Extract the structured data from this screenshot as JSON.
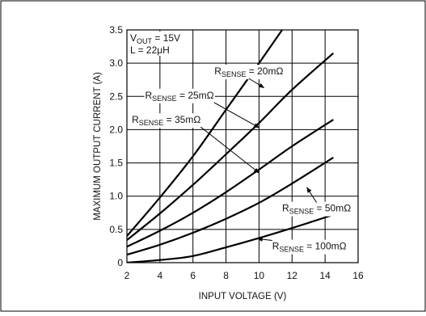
{
  "chart_data": {
    "type": "line",
    "title": "",
    "xlabel": "INPUT VOLTAGE (V)",
    "ylabel": "MAXIMUM OUTPUT CURRENT (A)",
    "xlim": [
      2,
      16
    ],
    "ylim": [
      0,
      3.5
    ],
    "x_ticks": [
      "2",
      "4",
      "6",
      "8",
      "10",
      "12",
      "14",
      "16"
    ],
    "y_ticks": [
      "0",
      "0.5",
      "1.0",
      "1.5",
      "2.0",
      "2.5",
      "3.0",
      "3.5"
    ],
    "x_tick_values": [
      2,
      4,
      6,
      8,
      10,
      12,
      14,
      16
    ],
    "y_tick_values": [
      0,
      0.5,
      1.0,
      1.5,
      2.0,
      2.5,
      3.0,
      3.5
    ],
    "grid": true,
    "conditions": [
      {
        "main": "V",
        "sub": "OUT",
        "rest": " = 15V"
      },
      {
        "main": "L = 22",
        "sub": "",
        "rest": "μH"
      }
    ],
    "series": [
      {
        "name": "RSENSE = 20mΩ",
        "label_main": "R",
        "label_sub": "SENSE",
        "label_rest": " = 20mΩ",
        "color": "#000000",
        "x": [
          2,
          4,
          6,
          8,
          10,
          11.4
        ],
        "y": [
          0.4,
          0.98,
          1.6,
          2.3,
          3.0,
          3.5
        ],
        "label_pos": [
          7.3,
          2.83
        ],
        "arrow_to": [
          10.3,
          2.63
        ]
      },
      {
        "name": "RSENSE = 25mΩ",
        "label_main": "R",
        "label_sub": "SENSE",
        "label_rest": " = 25mΩ",
        "color": "#000000",
        "x": [
          2,
          4,
          6,
          8,
          10,
          12,
          14.5
        ],
        "y": [
          0.34,
          0.74,
          1.17,
          1.63,
          2.1,
          2.6,
          3.15
        ],
        "label_pos": [
          3.1,
          2.47
        ],
        "arrow_to": [
          10.0,
          2.03
        ]
      },
      {
        "name": "RSENSE = 35mΩ",
        "label_main": "R",
        "label_sub": "SENSE",
        "label_rest": " = 35mΩ",
        "color": "#000000",
        "x": [
          2,
          4,
          6,
          8,
          10,
          12,
          14.5
        ],
        "y": [
          0.24,
          0.48,
          0.75,
          1.06,
          1.4,
          1.75,
          2.15
        ],
        "label_pos": [
          2.3,
          2.1
        ],
        "arrow_to": [
          10.0,
          1.35
        ]
      },
      {
        "name": "RSENSE = 50mΩ",
        "label_main": "R",
        "label_sub": "SENSE",
        "label_rest": " = 50mΩ",
        "color": "#000000",
        "x": [
          2,
          4,
          6,
          8,
          10,
          12,
          14.5
        ],
        "y": [
          0.12,
          0.27,
          0.45,
          0.66,
          0.9,
          1.19,
          1.58
        ],
        "label_pos": [
          11.4,
          0.77
        ],
        "arrow_to": [
          12.9,
          1.13
        ]
      },
      {
        "name": "RSENSE = 100mΩ",
        "label_main": "R",
        "label_sub": "SENSE",
        "label_rest": " = 100mΩ",
        "color": "#000000",
        "x": [
          2,
          4,
          6,
          8,
          10,
          12,
          14.5
        ],
        "y": [
          0.0,
          0.04,
          0.1,
          0.23,
          0.37,
          0.52,
          0.72
        ],
        "label_pos": [
          10.8,
          0.2
        ],
        "arrow_to": [
          9.9,
          0.36
        ]
      }
    ]
  }
}
